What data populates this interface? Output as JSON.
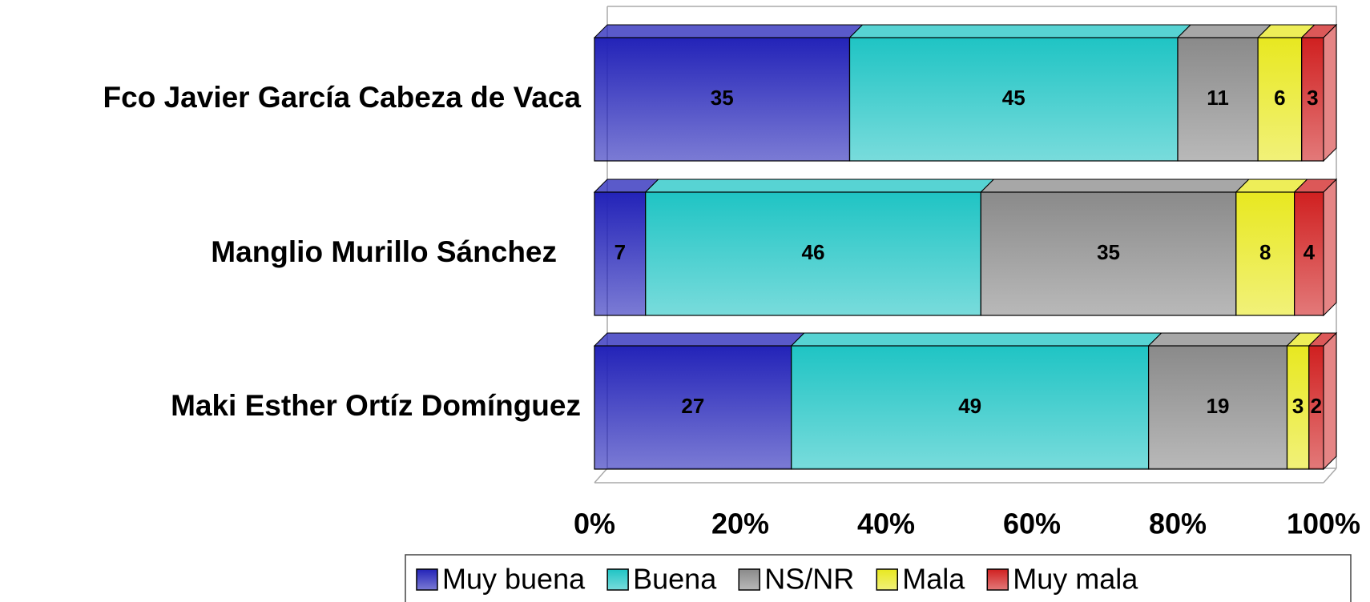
{
  "chart_data": {
    "type": "stacked-bar-horizontal",
    "categories": [
      "Fco Javier García Cabeza de Vaca",
      "Manglio Murillo Sánchez",
      "Maki Esther Ortíz Domínguez"
    ],
    "series": [
      {
        "name": "Muy buena",
        "color": "#2323b8",
        "values": [
          35,
          7,
          27
        ]
      },
      {
        "name": "Buena",
        "color": "#1fc4c4",
        "values": [
          45,
          46,
          49
        ]
      },
      {
        "name": "NS/NR",
        "color": "#8a8a8a",
        "values": [
          11,
          35,
          19
        ]
      },
      {
        "name": "Mala",
        "color": "#e8e820",
        "values": [
          6,
          8,
          3
        ]
      },
      {
        "name": "Muy mala",
        "color": "#d02020",
        "values": [
          3,
          4,
          2
        ]
      }
    ],
    "xlim": [
      0,
      100
    ],
    "xticks": [
      {
        "value": 0,
        "label": "0%"
      },
      {
        "value": 20,
        "label": "20%"
      },
      {
        "value": 40,
        "label": "40%"
      },
      {
        "value": 60,
        "label": "60%"
      },
      {
        "value": 80,
        "label": "80%"
      },
      {
        "value": 100,
        "label": "100%"
      }
    ],
    "legend": "bottom"
  }
}
